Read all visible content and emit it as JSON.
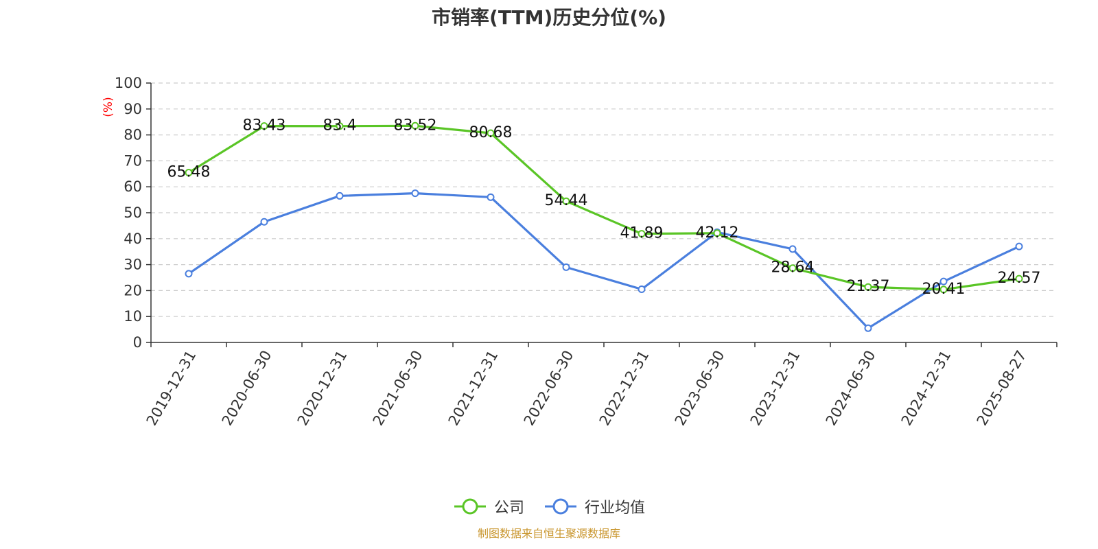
{
  "chart_data": {
    "type": "line",
    "title": "市销率(TTM)历史分位(%)",
    "ylabel": "(%)",
    "xlabel": "",
    "ylim": [
      0,
      100
    ],
    "yticks": [
      "0",
      "10",
      "20",
      "30",
      "40",
      "50",
      "60",
      "70",
      "80",
      "90",
      "100"
    ],
    "categories": [
      "2019-12-31",
      "2020-06-30",
      "2020-12-31",
      "2021-06-30",
      "2021-12-31",
      "2022-06-30",
      "2022-12-31",
      "2023-06-30",
      "2023-12-31",
      "2024-06-30",
      "2024-12-31",
      "2025-08-27"
    ],
    "grid": true,
    "legend_position": "bottom",
    "series": [
      {
        "name": "公司",
        "color": "#5ac526",
        "values": [
          65.48,
          83.43,
          83.4,
          83.52,
          80.68,
          54.44,
          41.89,
          42.12,
          28.64,
          21.37,
          20.41,
          24.57
        ],
        "labels": [
          "65.48",
          "83.43",
          "83.4",
          "83.52",
          "80.68",
          "54.44",
          "41.89",
          "42.12",
          "28.64",
          "21.37",
          "20.41",
          "24.57"
        ]
      },
      {
        "name": "行业均值",
        "color": "#4a7fde",
        "values": [
          26.5,
          46.5,
          56.5,
          57.5,
          56.0,
          29.0,
          20.5,
          42.5,
          36.0,
          5.5,
          23.5,
          37.0
        ]
      }
    ],
    "source": "制图数据来自恒生聚源数据库"
  }
}
